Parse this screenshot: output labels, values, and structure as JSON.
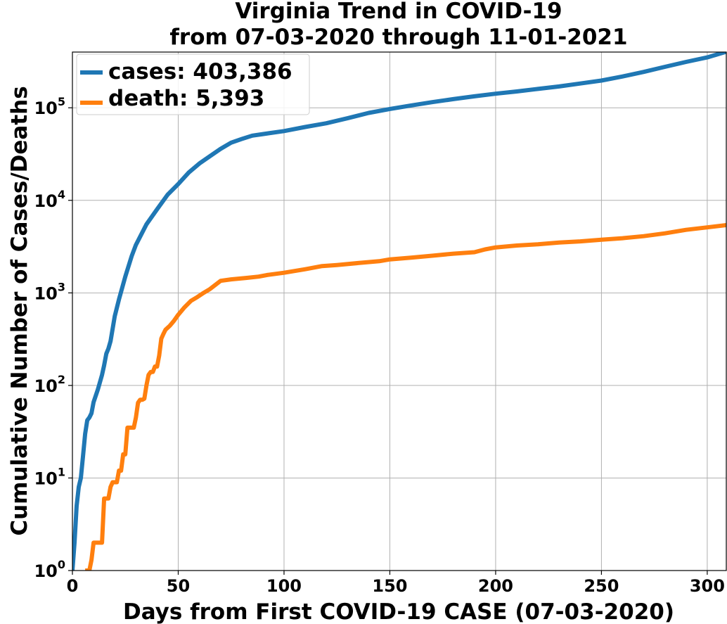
{
  "chart_data": {
    "type": "line",
    "title": [
      "Virginia Trend in COVID-19",
      "from 07-03-2020 through 11-01-2021"
    ],
    "xlabel": "Days from First COVID-19 CASE (07-03-2020)",
    "ylabel": "Cumulative Number of Cases/Deaths",
    "xlim": [
      0,
      309
    ],
    "ylim": [
      1,
      400000
    ],
    "yscale": "log",
    "grid": true,
    "legend_position": "top-left",
    "x_ticks": [
      {
        "value": 0,
        "label": "0"
      },
      {
        "value": 50,
        "label": "50"
      },
      {
        "value": 100,
        "label": "100"
      },
      {
        "value": 150,
        "label": "150"
      },
      {
        "value": 200,
        "label": "200"
      },
      {
        "value": 250,
        "label": "250"
      },
      {
        "value": 300,
        "label": "300"
      }
    ],
    "y_ticks": [
      {
        "value": 1,
        "base": "10",
        "exp": "0"
      },
      {
        "value": 10,
        "base": "10",
        "exp": "1"
      },
      {
        "value": 100,
        "base": "10",
        "exp": "2"
      },
      {
        "value": 1000,
        "base": "10",
        "exp": "3"
      },
      {
        "value": 10000,
        "base": "10",
        "exp": "4"
      },
      {
        "value": 100000,
        "base": "10",
        "exp": "5"
      }
    ],
    "series": [
      {
        "name": "cases: 403,386",
        "color": "#1f77b4",
        "x": [
          0,
          1,
          2,
          3,
          4,
          5,
          6,
          7,
          8,
          9,
          10,
          12,
          14,
          15,
          16,
          17,
          18,
          20,
          22,
          25,
          28,
          30,
          35,
          40,
          45,
          50,
          55,
          60,
          65,
          70,
          75,
          80,
          85,
          90,
          100,
          110,
          120,
          130,
          140,
          150,
          160,
          170,
          180,
          190,
          200,
          210,
          220,
          230,
          240,
          250,
          260,
          270,
          280,
          290,
          300,
          309
        ],
        "y": [
          1,
          2,
          5,
          8,
          10,
          17,
          30,
          42,
          45,
          50,
          66,
          90,
          130,
          165,
          220,
          250,
          300,
          560,
          850,
          1500,
          2500,
          3300,
          5500,
          8000,
          11500,
          15000,
          20000,
          25000,
          30000,
          36000,
          42000,
          46000,
          50000,
          52000,
          56000,
          62000,
          68000,
          77000,
          88000,
          97000,
          106000,
          115000,
          124000,
          133000,
          142000,
          150000,
          160000,
          170000,
          183000,
          197000,
          218000,
          244000,
          277000,
          313000,
          350000,
          403386
        ]
      },
      {
        "name": "death: 5,393",
        "color": "#ff7f0e",
        "x": [
          6,
          8,
          9,
          10,
          11,
          12,
          13,
          14,
          15,
          16,
          17,
          18,
          19,
          20,
          21,
          22,
          23,
          24,
          25,
          26,
          27,
          28,
          29,
          30,
          31,
          32,
          33,
          34,
          35,
          36,
          37,
          38,
          39,
          40,
          41,
          42,
          43,
          44,
          45,
          46,
          48,
          50,
          53,
          56,
          59,
          62,
          65,
          70,
          75,
          78,
          82,
          88,
          92,
          100,
          110,
          118,
          125,
          135,
          145,
          150,
          160,
          170,
          180,
          190,
          195,
          200,
          210,
          220,
          230,
          240,
          250,
          260,
          270,
          280,
          290,
          300,
          309
        ],
        "y": [
          1,
          1,
          1.3,
          2,
          2,
          2,
          2,
          2,
          6,
          6,
          6,
          8,
          9,
          9,
          9,
          12,
          12,
          18,
          18,
          35,
          35,
          35,
          35,
          45,
          65,
          70,
          70,
          72,
          100,
          130,
          140,
          140,
          160,
          160,
          210,
          320,
          360,
          400,
          420,
          440,
          500,
          580,
          700,
          820,
          900,
          1000,
          1100,
          1350,
          1400,
          1420,
          1450,
          1500,
          1560,
          1650,
          1800,
          1950,
          2000,
          2100,
          2200,
          2300,
          2400,
          2520,
          2650,
          2750,
          2950,
          3100,
          3250,
          3350,
          3500,
          3600,
          3750,
          3900,
          4100,
          4400,
          4800,
          5100,
          5393
        ]
      }
    ]
  }
}
